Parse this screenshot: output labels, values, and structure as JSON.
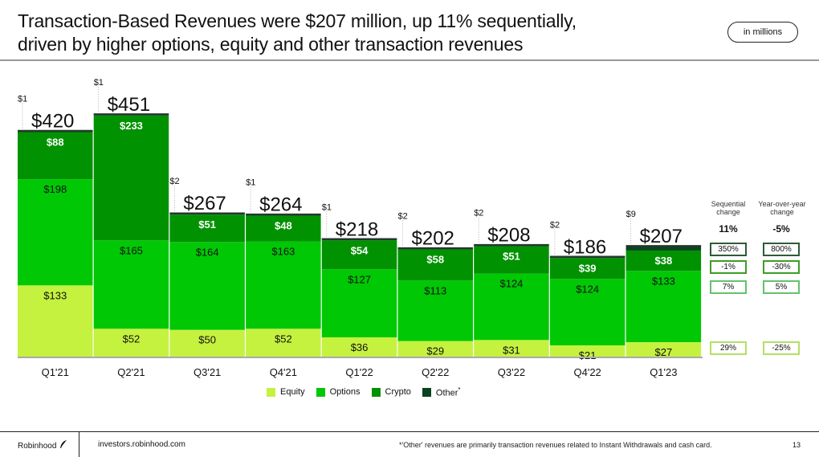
{
  "header": {
    "title_line1": "Transaction-Based Revenues were $207 million, up 11% sequentially,",
    "title_line2": "driven by higher options, equity and other transaction revenues",
    "unit_pill": "in millions"
  },
  "chart_data": {
    "type": "bar",
    "stacked": true,
    "title": "Transaction-Based Revenues were $207 million, up 11% sequentially, driven by higher options, equity and other transaction revenues",
    "unit": "in millions",
    "categories": [
      "Q1'21",
      "Q2'21",
      "Q3'21",
      "Q4'21",
      "Q1'22",
      "Q2'22",
      "Q3'22",
      "Q4'22",
      "Q1'23"
    ],
    "series": [
      {
        "name": "Equity",
        "color": "#c5f23f",
        "values": [
          133,
          52,
          50,
          52,
          36,
          29,
          31,
          21,
          27
        ],
        "labels": [
          "$133",
          "$52",
          "$50",
          "$52",
          "$36",
          "$29",
          "$31",
          "$21",
          "$27"
        ],
        "label_color": "#111111"
      },
      {
        "name": "Options",
        "color": "#00c805",
        "values": [
          198,
          165,
          164,
          163,
          127,
          113,
          124,
          124,
          133
        ],
        "labels": [
          "$198",
          "$165",
          "$164",
          "$163",
          "$127",
          "$113",
          "$124",
          "$124",
          "$133"
        ],
        "label_color": "#111111"
      },
      {
        "name": "Crypto",
        "color": "#009200",
        "values": [
          88,
          233,
          51,
          48,
          54,
          58,
          51,
          39,
          38
        ],
        "labels": [
          "$88",
          "$233",
          "$51",
          "$48",
          "$54",
          "$58",
          "$51",
          "$39",
          "$38"
        ],
        "label_color": "#ffffff"
      },
      {
        "name": "Other",
        "color": "#0b4221",
        "values": [
          1,
          1,
          2,
          1,
          1,
          2,
          2,
          2,
          9
        ],
        "labels": [
          "$1",
          "$1",
          "$2",
          "$1",
          "$1",
          "$2",
          "$2",
          "$2",
          "$9"
        ]
      }
    ],
    "totals": [
      420,
      451,
      267,
      264,
      218,
      202,
      208,
      186,
      207
    ],
    "total_labels": [
      "$420",
      "$451",
      "$267",
      "$264",
      "$218",
      "$202",
      "$208",
      "$186",
      "$207"
    ],
    "xlabel": "",
    "ylabel": "",
    "ylim": [
      0,
      460
    ],
    "grid": false,
    "legend_position": "bottom"
  },
  "changes": {
    "sequential_header": [
      "Sequential",
      "change"
    ],
    "yoy_header": [
      "Year-over-year",
      "change"
    ],
    "total": {
      "sequential": "11%",
      "yoy": "-5%"
    },
    "rows": [
      {
        "series": "Other",
        "sequential": "350%",
        "yoy": "800%",
        "border": "#2f5a3a"
      },
      {
        "series": "Crypto",
        "sequential": "-1%",
        "yoy": "-30%",
        "border": "#3e9d26"
      },
      {
        "series": "Options",
        "sequential": "7%",
        "yoy": "5%",
        "border": "#62c26d"
      },
      {
        "series": "Equity",
        "sequential": "29%",
        "yoy": "-25%",
        "border": "#b3e067"
      }
    ]
  },
  "legend": {
    "items": [
      {
        "label": "Equity",
        "color": "#c5f23f"
      },
      {
        "label": "Options",
        "color": "#00c805"
      },
      {
        "label": "Crypto",
        "color": "#009200"
      },
      {
        "label": "Other",
        "color": "#0b4221",
        "marker": "*"
      }
    ]
  },
  "footer": {
    "brand": "Robinhood",
    "brand_icon": "feather-icon",
    "url": "investors.robinhood.com",
    "note": "*'Other' revenues are primarily transaction revenues related to Instant Withdrawals and cash card.",
    "page": "13"
  }
}
